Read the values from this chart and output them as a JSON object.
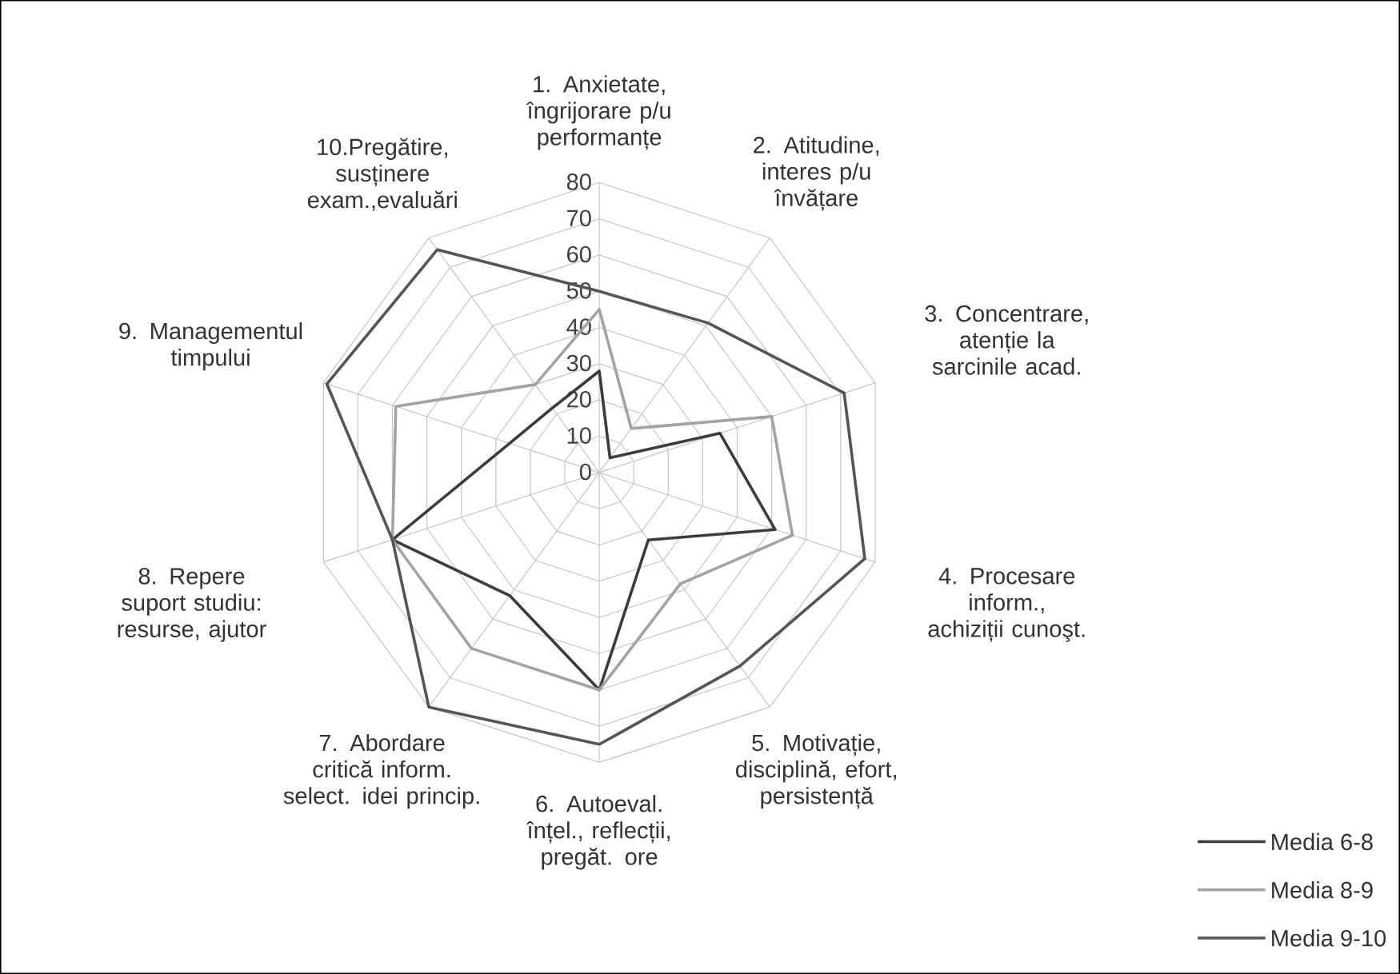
{
  "chart_data": {
    "type": "radar",
    "categories": [
      "1. Anxietate, îngrijorare p/u performanțe",
      "2. Atitudine, interes p/u învățare",
      "3. Concentrare, atenție la sarcinile acad.",
      "4. Procesare inform., achiziții cunoşt.",
      "5. Motivație, disciplină, efort, persistență",
      "6. Autoeval. înțel., reflecții, pregăt. ore",
      "7. Abordare critică inform. select. idei princip.",
      "8. Repere suport studiu: resurse, ajutor",
      "9. Managementul timpului",
      "10.Pregătire, susținere exam.,evaluări"
    ],
    "series": [
      {
        "name": "Media 6-8",
        "color": "#3c3c3c",
        "values": [
          28,
          5,
          35,
          51,
          23,
          60,
          42,
          60,
          26,
          22
        ]
      },
      {
        "name": "Media 8-9",
        "color": "#a3a3a3",
        "values": [
          45,
          15,
          50,
          56,
          38,
          60,
          60,
          60,
          59,
          30
        ]
      },
      {
        "name": "Media 9-10",
        "color": "#555555",
        "values": [
          50,
          51,
          71,
          77,
          66,
          75,
          80,
          60,
          79,
          76
        ]
      }
    ],
    "ylim": [
      0,
      80
    ],
    "yticks": [
      0,
      10,
      20,
      30,
      40,
      50,
      60,
      70,
      80
    ],
    "grid": true,
    "legend": "bottom right"
  }
}
